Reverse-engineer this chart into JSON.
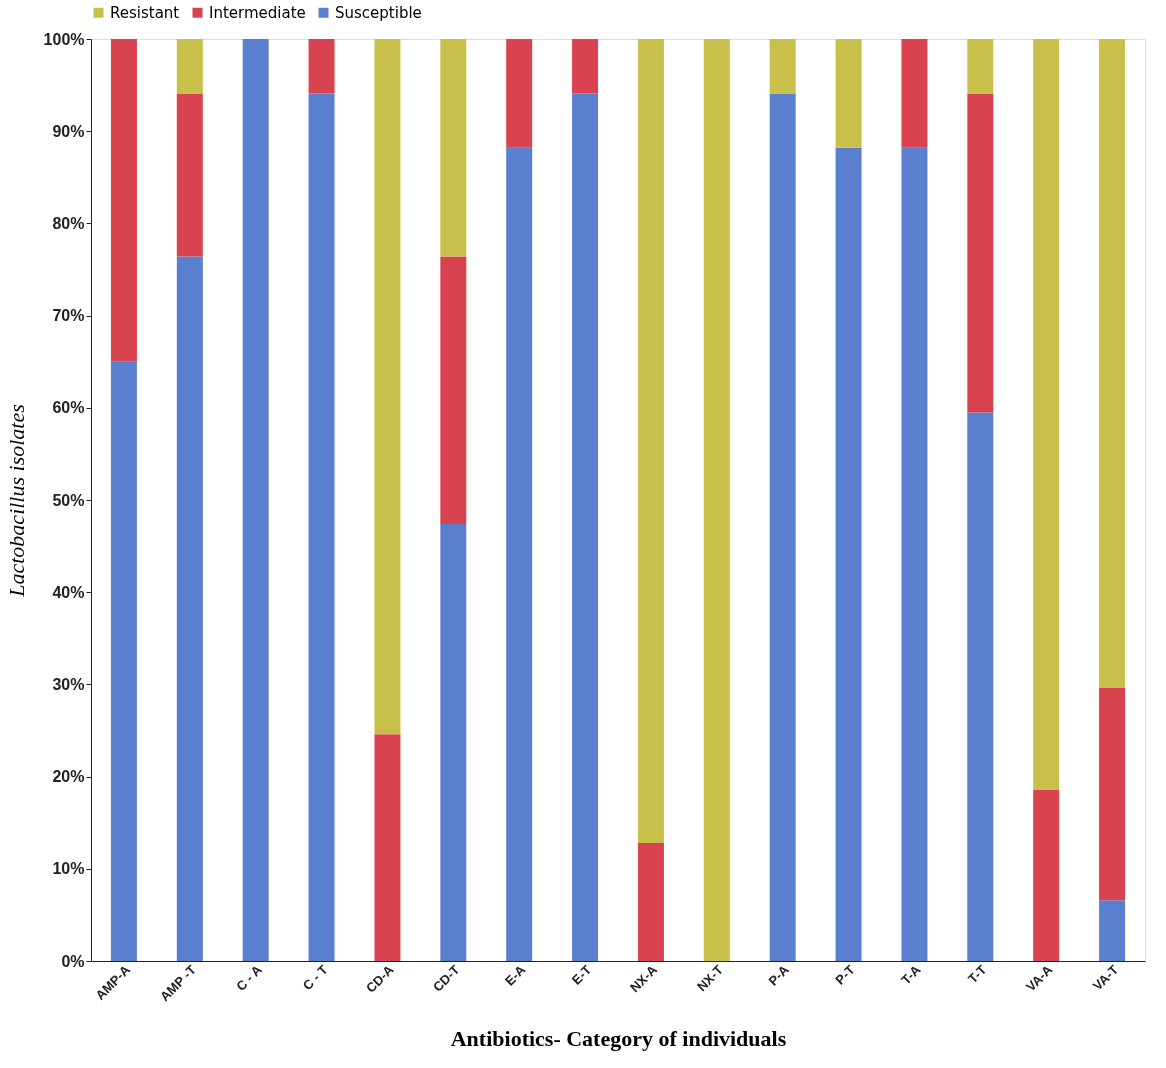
{
  "chart_data": {
    "type": "bar",
    "stacked": true,
    "xlabel": "Antibiotics- Category of individuals",
    "ylabel": "Lactobacillus isolates",
    "categories": [
      "AMP-A",
      "AMP -T",
      "C - A",
      "C - T",
      "CD-A",
      "CD-T",
      "E-A",
      "E-T",
      "NX-A",
      "NX-T",
      "P-A",
      "P-T",
      "T-A",
      "T-T",
      "VA-A",
      "VA-T"
    ],
    "series": [
      {
        "name": "Susceptible",
        "color": "#5b7fcf",
        "values": [
          65,
          76.4,
          100,
          94.1,
          0,
          47.4,
          88.2,
          94.1,
          0,
          0,
          94.1,
          88.2,
          88.2,
          59.5,
          0,
          6.6
        ]
      },
      {
        "name": "Intermediate",
        "color": "#d9434f",
        "values": [
          35,
          17.7,
          0,
          5.9,
          24.6,
          29,
          11.8,
          5.9,
          12.8,
          0,
          0,
          0,
          11.8,
          34.6,
          18.6,
          23
        ]
      },
      {
        "name": "Resistant",
        "color": "#c8c04a",
        "values": [
          0,
          5.9,
          0,
          0,
          75.4,
          23.6,
          0,
          0,
          87.2,
          100,
          5.9,
          11.8,
          0,
          5.9,
          81.4,
          70.4
        ]
      }
    ],
    "ylim": [
      0,
      100
    ],
    "yticks": [
      {
        "value": 0,
        "label": "0%"
      },
      {
        "value": 10,
        "label": "10%"
      },
      {
        "value": 20,
        "label": "20%"
      },
      {
        "value": 30,
        "label": "30%"
      },
      {
        "value": 40,
        "label": "40%"
      },
      {
        "value": 50,
        "label": "50%"
      },
      {
        "value": 60,
        "label": "60%"
      },
      {
        "value": 70,
        "label": "70%"
      },
      {
        "value": 80,
        "label": "80%"
      },
      {
        "value": 90,
        "label": "90%"
      },
      {
        "value": 100,
        "label": "100%"
      }
    ],
    "legend": "top",
    "grid": false
  }
}
